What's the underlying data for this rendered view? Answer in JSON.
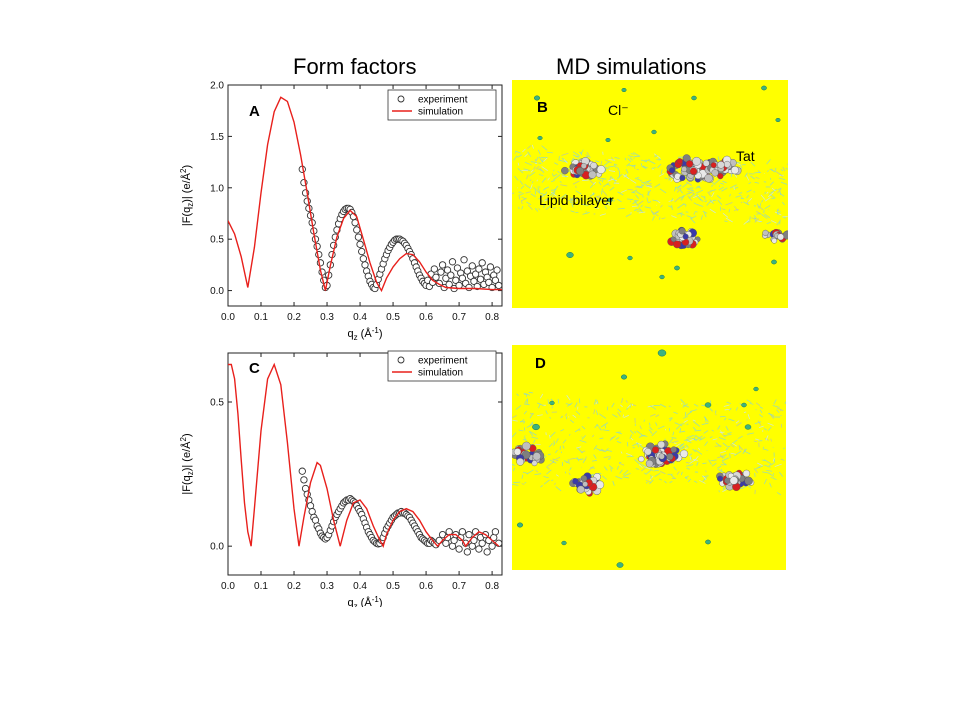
{
  "headings": {
    "form_factors": "Form factors",
    "md_simulations": "MD simulations"
  },
  "panels": {
    "b": {
      "label": "B",
      "chloride": "Cl⁻",
      "tat": "Tat",
      "bilayer": "Lipid bilayer"
    },
    "d": {
      "label": "D"
    }
  },
  "colors": {
    "simulation": "#e8201c",
    "experiment_edge": "#333333",
    "md_background": "#ffff00",
    "lipid": "#8fd8c8",
    "ion": "#3db27f"
  },
  "chart_data": [
    {
      "panel": "A",
      "type": "line",
      "xlabel": "q_z (Å⁻¹)",
      "ylabel": "|F(q_z)| (e/Å²)",
      "xlim": [
        0.0,
        0.83
      ],
      "ylim": [
        -0.15,
        2.0
      ],
      "xticks": [
        "0.0",
        "0.1",
        "0.2",
        "0.3",
        "0.4",
        "0.5",
        "0.6",
        "0.7",
        "0.8"
      ],
      "yticks": [
        "0.0",
        "0.5",
        "1.0",
        "1.5",
        "2.0"
      ],
      "legend": {
        "placement": "top-right",
        "entries": [
          "experiment",
          "simulation"
        ]
      },
      "series": [
        {
          "name": "simulation",
          "style": "line",
          "x": [
            0.0,
            0.02,
            0.04,
            0.06,
            0.08,
            0.1,
            0.12,
            0.14,
            0.16,
            0.18,
            0.2,
            0.22,
            0.24,
            0.26,
            0.28,
            0.295,
            0.31,
            0.33,
            0.35,
            0.37,
            0.39,
            0.41,
            0.43,
            0.45,
            0.465,
            0.48,
            0.5,
            0.52,
            0.54,
            0.56,
            0.58,
            0.6,
            0.62,
            0.64,
            0.66,
            0.7,
            0.75,
            0.8,
            0.83
          ],
          "y": [
            0.68,
            0.55,
            0.33,
            0.03,
            0.42,
            0.95,
            1.42,
            1.74,
            1.88,
            1.84,
            1.64,
            1.32,
            0.95,
            0.56,
            0.2,
            0.0,
            0.24,
            0.52,
            0.7,
            0.78,
            0.72,
            0.5,
            0.27,
            0.08,
            0.0,
            0.12,
            0.23,
            0.31,
            0.36,
            0.35,
            0.28,
            0.18,
            0.1,
            0.06,
            0.03,
            0.02,
            0.02,
            0.01,
            0.01
          ]
        },
        {
          "name": "experiment",
          "style": "markers",
          "x": [
            0.225,
            0.23,
            0.235,
            0.24,
            0.245,
            0.25,
            0.255,
            0.26,
            0.265,
            0.27,
            0.275,
            0.28,
            0.285,
            0.29,
            0.295,
            0.3,
            0.305,
            0.31,
            0.315,
            0.32,
            0.325,
            0.33,
            0.335,
            0.34,
            0.345,
            0.35,
            0.355,
            0.36,
            0.365,
            0.37,
            0.375,
            0.38,
            0.385,
            0.39,
            0.395,
            0.4,
            0.405,
            0.41,
            0.415,
            0.42,
            0.425,
            0.43,
            0.435,
            0.44,
            0.445,
            0.45,
            0.455,
            0.46,
            0.465,
            0.47,
            0.475,
            0.48,
            0.485,
            0.49,
            0.495,
            0.5,
            0.505,
            0.51,
            0.515,
            0.52,
            0.525,
            0.53,
            0.535,
            0.54,
            0.545,
            0.55,
            0.555,
            0.56,
            0.565,
            0.57,
            0.575,
            0.58,
            0.585,
            0.59,
            0.595,
            0.6,
            0.605,
            0.61,
            0.615,
            0.62,
            0.625,
            0.63,
            0.64,
            0.645,
            0.65,
            0.655,
            0.66,
            0.665,
            0.67,
            0.675,
            0.68,
            0.685,
            0.69,
            0.695,
            0.7,
            0.705,
            0.71,
            0.715,
            0.72,
            0.725,
            0.73,
            0.735,
            0.74,
            0.745,
            0.75,
            0.755,
            0.76,
            0.765,
            0.77,
            0.775,
            0.78,
            0.785,
            0.79,
            0.795,
            0.8,
            0.805,
            0.81,
            0.815,
            0.82
          ],
          "y": [
            1.18,
            1.05,
            0.95,
            0.87,
            0.8,
            0.73,
            0.66,
            0.58,
            0.5,
            0.43,
            0.35,
            0.27,
            0.18,
            0.1,
            0.03,
            0.05,
            0.15,
            0.25,
            0.35,
            0.44,
            0.52,
            0.59,
            0.65,
            0.7,
            0.74,
            0.77,
            0.79,
            0.8,
            0.8,
            0.79,
            0.76,
            0.72,
            0.66,
            0.59,
            0.52,
            0.45,
            0.38,
            0.31,
            0.25,
            0.19,
            0.14,
            0.09,
            0.06,
            0.03,
            0.02,
            0.06,
            0.11,
            0.16,
            0.21,
            0.26,
            0.31,
            0.35,
            0.39,
            0.42,
            0.45,
            0.47,
            0.49,
            0.5,
            0.5,
            0.5,
            0.49,
            0.48,
            0.46,
            0.44,
            0.41,
            0.38,
            0.35,
            0.31,
            0.27,
            0.23,
            0.19,
            0.15,
            0.12,
            0.09,
            0.07,
            0.05,
            0.1,
            0.04,
            0.16,
            0.08,
            0.21,
            0.13,
            0.07,
            0.18,
            0.25,
            0.03,
            0.12,
            0.2,
            0.06,
            0.15,
            0.28,
            0.02,
            0.1,
            0.22,
            0.05,
            0.17,
            0.12,
            0.3,
            0.07,
            0.19,
            0.03,
            0.14,
            0.24,
            0.09,
            0.16,
            0.04,
            0.21,
            0.11,
            0.27,
            0.06,
            0.18,
            0.13,
            0.08,
            0.23,
            0.03,
            0.15,
            0.1,
            0.2,
            0.05
          ]
        }
      ]
    },
    {
      "panel": "C",
      "type": "line",
      "xlabel": "q_z (Å⁻¹)",
      "ylabel": "|F(q_z)| (e/Å²)",
      "xlim": [
        0.0,
        0.83
      ],
      "ylim": [
        -0.1,
        0.67
      ],
      "xticks": [
        "0.0",
        "0.1",
        "0.2",
        "0.3",
        "0.4",
        "0.5",
        "0.6",
        "0.7",
        "0.8"
      ],
      "yticks": [
        "0.0",
        "0.5"
      ],
      "legend": {
        "placement": "top-right",
        "entries": [
          "experiment",
          "simulation"
        ]
      },
      "series": [
        {
          "name": "simulation",
          "style": "line",
          "x": [
            0.0,
            0.01,
            0.02,
            0.03,
            0.04,
            0.05,
            0.06,
            0.07,
            0.08,
            0.1,
            0.12,
            0.14,
            0.16,
            0.18,
            0.2,
            0.215,
            0.23,
            0.25,
            0.27,
            0.28,
            0.3,
            0.32,
            0.34,
            0.36,
            0.38,
            0.4,
            0.42,
            0.44,
            0.46,
            0.47,
            0.48,
            0.5,
            0.52,
            0.54,
            0.56,
            0.58,
            0.6,
            0.62,
            0.635,
            0.65,
            0.67,
            0.69,
            0.71,
            0.72,
            0.74,
            0.76,
            0.78,
            0.8,
            0.82
          ],
          "y": [
            0.63,
            0.63,
            0.58,
            0.46,
            0.3,
            0.15,
            0.05,
            0.0,
            0.13,
            0.4,
            0.58,
            0.63,
            0.56,
            0.36,
            0.13,
            0.0,
            0.1,
            0.22,
            0.29,
            0.28,
            0.2,
            0.09,
            0.0,
            0.09,
            0.15,
            0.16,
            0.13,
            0.07,
            0.02,
            0.0,
            0.04,
            0.09,
            0.12,
            0.13,
            0.12,
            0.09,
            0.05,
            0.02,
            0.0,
            0.02,
            0.04,
            0.04,
            0.02,
            0.0,
            0.03,
            0.05,
            0.04,
            0.02,
            0.0
          ]
        },
        {
          "name": "experiment",
          "style": "markers",
          "x": [
            0.225,
            0.23,
            0.235,
            0.24,
            0.245,
            0.25,
            0.255,
            0.26,
            0.265,
            0.27,
            0.275,
            0.28,
            0.285,
            0.29,
            0.295,
            0.3,
            0.305,
            0.31,
            0.315,
            0.32,
            0.325,
            0.33,
            0.335,
            0.34,
            0.345,
            0.35,
            0.355,
            0.36,
            0.365,
            0.37,
            0.375,
            0.38,
            0.385,
            0.39,
            0.395,
            0.4,
            0.405,
            0.41,
            0.415,
            0.42,
            0.425,
            0.43,
            0.435,
            0.44,
            0.445,
            0.45,
            0.455,
            0.46,
            0.465,
            0.47,
            0.475,
            0.48,
            0.485,
            0.49,
            0.495,
            0.5,
            0.505,
            0.51,
            0.515,
            0.52,
            0.525,
            0.53,
            0.535,
            0.54,
            0.545,
            0.55,
            0.555,
            0.56,
            0.565,
            0.57,
            0.575,
            0.58,
            0.585,
            0.59,
            0.595,
            0.6,
            0.605,
            0.61,
            0.615,
            0.62,
            0.625,
            0.63,
            0.64,
            0.65,
            0.66,
            0.665,
            0.67,
            0.68,
            0.685,
            0.69,
            0.7,
            0.705,
            0.71,
            0.72,
            0.725,
            0.73,
            0.74,
            0.745,
            0.75,
            0.76,
            0.765,
            0.77,
            0.78,
            0.785,
            0.79,
            0.8,
            0.805,
            0.81,
            0.82
          ],
          "y": [
            0.26,
            0.23,
            0.2,
            0.18,
            0.16,
            0.14,
            0.12,
            0.1,
            0.09,
            0.07,
            0.06,
            0.045,
            0.035,
            0.03,
            0.025,
            0.03,
            0.04,
            0.055,
            0.07,
            0.085,
            0.1,
            0.11,
            0.12,
            0.13,
            0.14,
            0.15,
            0.155,
            0.16,
            0.16,
            0.165,
            0.16,
            0.155,
            0.15,
            0.14,
            0.13,
            0.12,
            0.11,
            0.095,
            0.08,
            0.065,
            0.05,
            0.04,
            0.03,
            0.02,
            0.015,
            0.01,
            0.008,
            0.01,
            0.02,
            0.03,
            0.045,
            0.06,
            0.07,
            0.08,
            0.09,
            0.1,
            0.105,
            0.11,
            0.115,
            0.115,
            0.12,
            0.115,
            0.115,
            0.11,
            0.105,
            0.1,
            0.09,
            0.08,
            0.07,
            0.06,
            0.05,
            0.04,
            0.03,
            0.025,
            0.02,
            0.015,
            0.01,
            0.01,
            0.02,
            0.015,
            0.01,
            0.005,
            0.02,
            0.04,
            0.01,
            0.03,
            0.05,
            0.0,
            0.02,
            0.04,
            -0.01,
            0.03,
            0.05,
            0.01,
            -0.02,
            0.04,
            0.0,
            0.02,
            0.05,
            -0.01,
            0.03,
            0.01,
            0.04,
            -0.02,
            0.02,
            0.0,
            0.03,
            0.05,
            0.01
          ]
        }
      ]
    }
  ]
}
